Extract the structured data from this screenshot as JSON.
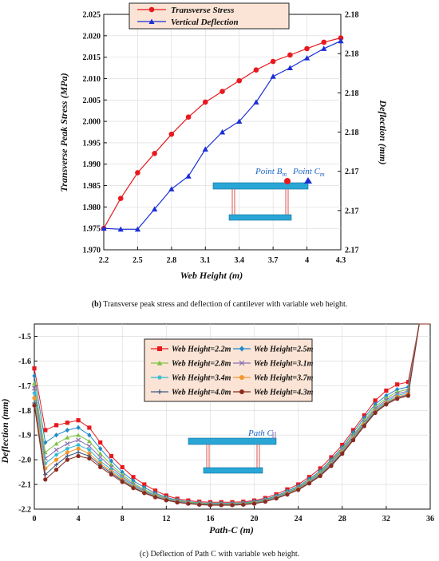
{
  "chart_data": [
    {
      "type": "line",
      "panel": "b",
      "x": [
        2.2,
        2.35,
        2.5,
        2.65,
        2.8,
        2.95,
        3.1,
        3.25,
        3.4,
        3.55,
        3.7,
        3.85,
        4.0,
        4.15,
        4.3
      ],
      "xlabel": "Web Height (m)",
      "xlim": [
        2.2,
        4.3
      ],
      "xticks": [
        2.2,
        2.5,
        2.8,
        3.1,
        3.4,
        3.7,
        4.0,
        4.3
      ],
      "xtick_labels": [
        "2.2",
        "2.5",
        "2.8",
        "3.1",
        "3.4",
        "3.7",
        "4",
        "4.3"
      ],
      "ylabel": "Transverse Peak Stress (MPa)",
      "ylim": [
        1.97,
        2.025
      ],
      "yticks": [
        1.97,
        1.975,
        1.98,
        1.985,
        1.99,
        1.995,
        2.0,
        2.005,
        2.01,
        2.015,
        2.02,
        2.025
      ],
      "ytick_labels": [
        "1.970",
        "1.975",
        "1.980",
        "1.985",
        "1.990",
        "1.995",
        "2.000",
        "2.005",
        "2.010",
        "2.015",
        "2.020",
        "2.025"
      ],
      "y2label": "Deflection (mm)",
      "y2ticks": [
        0,
        1,
        2,
        3,
        4,
        5,
        6
      ],
      "y2tick_labels": [
        "2.17",
        "2.17",
        "2.17",
        "2.18",
        "2.18",
        "2.18",
        "2.18"
      ],
      "series": [
        {
          "name": "Transverse Stress",
          "color": "#e8191e",
          "marker": "circle",
          "axis": "left",
          "values": [
            1.975,
            1.982,
            1.988,
            1.9925,
            1.997,
            2.001,
            2.0045,
            2.007,
            2.0095,
            2.012,
            2.014,
            2.0155,
            2.017,
            2.0185,
            2.0195
          ]
        },
        {
          "name": "Vertical Deflection",
          "color": "#1a2fd6",
          "marker": "triangle",
          "axis": "left",
          "values": [
            1.975,
            1.9748,
            1.9748,
            1.9795,
            1.9842,
            1.9872,
            1.9935,
            1.9975,
            2.0,
            2.0045,
            2.0105,
            2.0125,
            2.0148,
            2.017,
            2.0188
          ]
        }
      ],
      "legend": "top-center",
      "annotations": [
        {
          "text_main": "Point B",
          "text_sub": "m"
        },
        {
          "text_main": "Point C",
          "text_sub": "m"
        }
      ],
      "caption_label": "(b)",
      "caption": " Transverse peak stress and deflection of cantilever with variable web height."
    },
    {
      "type": "line",
      "panel": "c",
      "x": [
        0,
        1,
        2,
        3,
        4,
        5,
        6,
        7,
        8,
        9,
        10,
        11,
        12,
        13,
        14,
        15,
        16,
        17,
        18,
        19,
        20,
        21,
        22,
        23,
        24,
        25,
        26,
        27,
        28,
        29,
        30,
        31,
        32,
        33,
        34,
        35
      ],
      "xlabel": "Path-C (m)",
      "xlim": [
        0,
        36
      ],
      "xticks": [
        0,
        4,
        8,
        12,
        16,
        20,
        24,
        28,
        32,
        36
      ],
      "xtick_labels": [
        "0",
        "4",
        "8",
        "12",
        "16",
        "20",
        "24",
        "28",
        "32",
        "36"
      ],
      "ylabel": "Deflection (mm)",
      "ylim": [
        -2.2,
        -1.45
      ],
      "yticks": [
        -2.2,
        -2.1,
        -2.0,
        -1.9,
        -1.8,
        -1.7,
        -1.6,
        -1.5
      ],
      "ytick_labels": [
        "-2.2",
        "-2.1",
        "-2.0",
        "-1.9",
        "-1.8",
        "-1.7",
        "-1.6",
        "-1.5"
      ],
      "series": [
        {
          "name": "Web Height=2.2m",
          "color": "#e8191e",
          "marker": "square",
          "values": [
            -1.63,
            -1.88,
            -1.86,
            -1.85,
            -1.84,
            -1.87,
            -1.93,
            -1.985,
            -2.03,
            -2.07,
            -2.1,
            -2.125,
            -2.145,
            -2.158,
            -2.165,
            -2.17,
            -2.172,
            -2.172,
            -2.172,
            -2.17,
            -2.165,
            -2.155,
            -2.14,
            -2.12,
            -2.1,
            -2.07,
            -2.035,
            -1.99,
            -1.94,
            -1.88,
            -1.82,
            -1.76,
            -1.72,
            -1.695,
            -1.685,
            -1.5
          ]
        },
        {
          "name": "Web Height=2.5m",
          "color": "#1f88c9",
          "marker": "diamond",
          "values": [
            -1.66,
            -1.93,
            -1.9,
            -1.88,
            -1.87,
            -1.9,
            -1.955,
            -2.005,
            -2.05,
            -2.085,
            -2.112,
            -2.135,
            -2.152,
            -2.163,
            -2.17,
            -2.174,
            -2.176,
            -2.176,
            -2.176,
            -2.174,
            -2.169,
            -2.16,
            -2.146,
            -2.127,
            -2.107,
            -2.078,
            -2.045,
            -2.0,
            -1.95,
            -1.89,
            -1.83,
            -1.775,
            -1.74,
            -1.715,
            -1.705,
            -1.5
          ]
        },
        {
          "name": "Web Height=2.8m",
          "color": "#7cc242",
          "marker": "triangle",
          "values": [
            -1.69,
            -1.97,
            -1.935,
            -1.91,
            -1.9,
            -1.925,
            -1.975,
            -2.02,
            -2.06,
            -2.095,
            -2.12,
            -2.14,
            -2.156,
            -2.166,
            -2.172,
            -2.176,
            -2.178,
            -2.178,
            -2.178,
            -2.176,
            -2.172,
            -2.163,
            -2.149,
            -2.131,
            -2.111,
            -2.083,
            -2.05,
            -2.005,
            -1.955,
            -1.9,
            -1.84,
            -1.785,
            -1.75,
            -1.725,
            -1.715,
            -1.5
          ]
        },
        {
          "name": "Web Height=3.1m",
          "color": "#8a6fb0",
          "marker": "x",
          "values": [
            -1.71,
            -1.995,
            -1.96,
            -1.935,
            -1.92,
            -1.945,
            -1.99,
            -2.03,
            -2.068,
            -2.1,
            -2.125,
            -2.144,
            -2.159,
            -2.168,
            -2.174,
            -2.178,
            -2.18,
            -2.18,
            -2.18,
            -2.178,
            -2.174,
            -2.165,
            -2.151,
            -2.134,
            -2.114,
            -2.087,
            -2.055,
            -2.01,
            -1.96,
            -1.905,
            -1.847,
            -1.792,
            -1.758,
            -1.733,
            -1.722,
            -1.5
          ]
        },
        {
          "name": "Web Height=3.4m",
          "color": "#2bb7d4",
          "marker": "star",
          "values": [
            -1.73,
            -2.015,
            -1.98,
            -1.955,
            -1.94,
            -1.96,
            -2.005,
            -2.04,
            -2.075,
            -2.105,
            -2.128,
            -2.146,
            -2.161,
            -2.17,
            -2.175,
            -2.179,
            -2.181,
            -2.181,
            -2.181,
            -2.179,
            -2.175,
            -2.167,
            -2.153,
            -2.136,
            -2.116,
            -2.09,
            -2.058,
            -2.015,
            -1.965,
            -1.91,
            -1.852,
            -1.798,
            -1.764,
            -1.74,
            -1.728,
            -1.5
          ]
        },
        {
          "name": "Web Height=3.7m",
          "color": "#f2962f",
          "marker": "circle",
          "values": [
            -1.75,
            -2.035,
            -2.0,
            -1.97,
            -1.955,
            -1.975,
            -2.015,
            -2.048,
            -2.08,
            -2.109,
            -2.131,
            -2.148,
            -2.162,
            -2.171,
            -2.176,
            -2.18,
            -2.182,
            -2.182,
            -2.182,
            -2.18,
            -2.176,
            -2.168,
            -2.155,
            -2.138,
            -2.118,
            -2.092,
            -2.061,
            -2.018,
            -1.968,
            -1.913,
            -1.856,
            -1.802,
            -1.768,
            -1.745,
            -1.733,
            -1.5
          ]
        },
        {
          "name": "Web Height=4.0m",
          "color": "#3d5a80",
          "marker": "plus",
          "values": [
            -1.77,
            -2.06,
            -2.02,
            -1.985,
            -1.97,
            -1.985,
            -2.022,
            -2.054,
            -2.085,
            -2.112,
            -2.133,
            -2.15,
            -2.163,
            -2.172,
            -2.177,
            -2.181,
            -2.183,
            -2.183,
            -2.183,
            -2.181,
            -2.177,
            -2.169,
            -2.156,
            -2.14,
            -2.12,
            -2.094,
            -2.063,
            -2.021,
            -1.972,
            -1.917,
            -1.86,
            -1.806,
            -1.772,
            -1.749,
            -1.737,
            -1.5
          ]
        },
        {
          "name": "Web Height=4.3m",
          "color": "#8b2a1e",
          "marker": "circle",
          "values": [
            -1.78,
            -2.08,
            -2.04,
            -2.0,
            -1.985,
            -1.995,
            -2.03,
            -2.06,
            -2.09,
            -2.115,
            -2.135,
            -2.152,
            -2.164,
            -2.173,
            -2.178,
            -2.182,
            -2.184,
            -2.184,
            -2.184,
            -2.182,
            -2.178,
            -2.17,
            -2.157,
            -2.141,
            -2.122,
            -2.096,
            -2.066,
            -2.025,
            -1.976,
            -1.921,
            -1.864,
            -1.81,
            -1.776,
            -1.753,
            -1.741,
            -1.5
          ]
        }
      ],
      "legend": "top-center",
      "annotations": [
        {
          "text": "Path C"
        }
      ],
      "caption": "(c) Deflection of Path C with variable web height."
    }
  ]
}
